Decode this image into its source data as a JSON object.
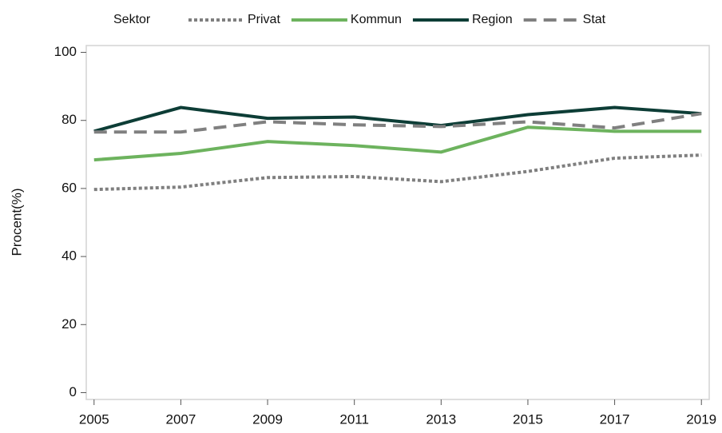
{
  "chart_data": {
    "type": "line",
    "ylabel": "Procent(%)",
    "legend_title": "Sektor",
    "legend_position": "top",
    "x": [
      2005,
      2007,
      2009,
      2011,
      2013,
      2015,
      2017,
      2019
    ],
    "xlim": [
      2004.82,
      2019.18
    ],
    "xticks": [
      2005,
      2007,
      2009,
      2011,
      2013,
      2015,
      2017,
      2019
    ],
    "ylim": [
      -2,
      102
    ],
    "yticks": [
      0,
      20,
      40,
      60,
      80,
      100
    ],
    "grid": false,
    "series": [
      {
        "name": "Privat",
        "color": "#7f7f7f",
        "style": "dotted",
        "values": [
          59.7,
          60.4,
          63.2,
          63.5,
          62,
          65,
          68.9,
          69.8
        ]
      },
      {
        "name": "Kommun",
        "color": "#6db35e",
        "style": "solid",
        "values": [
          68.4,
          70.3,
          73.8,
          72.6,
          70.7,
          78,
          76.8,
          76.8
        ]
      },
      {
        "name": "Region",
        "color": "#0d3d36",
        "style": "solid",
        "values": [
          76.8,
          83.8,
          80.6,
          81,
          78.5,
          81.7,
          83.8,
          82
        ]
      },
      {
        "name": "Stat",
        "color": "#808080",
        "style": "dashed",
        "values": [
          76.6,
          76.6,
          79.6,
          78.7,
          78.2,
          79.6,
          77.8,
          82
        ]
      }
    ]
  }
}
